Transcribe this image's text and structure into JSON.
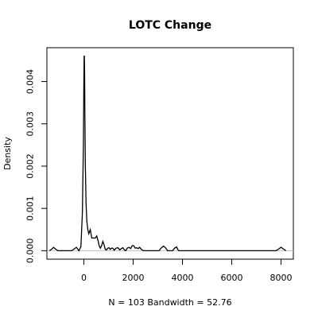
{
  "chart_data": {
    "type": "line",
    "title": "LOTC Change",
    "xlabel": "N = 103   Bandwidth = 52.76",
    "ylabel": "Density",
    "xlim": [
      -1500,
      8500
    ],
    "ylim": [
      -0.0002,
      0.0048
    ],
    "x_ticks": [
      0,
      2000,
      4000,
      6000,
      8000
    ],
    "x_tick_labels": [
      "0",
      "2000",
      "4000",
      "6000",
      "8000"
    ],
    "y_ticks": [
      0.0,
      0.001,
      0.002,
      0.003,
      0.004
    ],
    "y_tick_labels": [
      "0.000",
      "0.001",
      "0.002",
      "0.003",
      "0.004"
    ],
    "baseline": 0,
    "grid": false,
    "legend": "none",
    "line_color": "#000000",
    "baseline_color": "#bebebe",
    "series": [
      {
        "x": [
          -1400,
          -1300,
          -1230,
          -1150,
          -1050,
          -500,
          -400,
          -300,
          -200,
          -120,
          -60,
          -20,
          0,
          10,
          20,
          30,
          40,
          60,
          90,
          120,
          160,
          200,
          260,
          320,
          380,
          430,
          470,
          520,
          570,
          620,
          670,
          720,
          770,
          820,
          870,
          920,
          970,
          1020,
          1070,
          1120,
          1170,
          1230,
          1300,
          1380,
          1460,
          1520,
          1580,
          1640,
          1700,
          1760,
          1830,
          1900,
          1960,
          2020,
          2080,
          2140,
          2200,
          2260,
          2320,
          2380,
          2440,
          2500,
          3050,
          3150,
          3230,
          3310,
          3400,
          3600,
          3680,
          3760,
          3840,
          7800,
          7900,
          8000,
          8100,
          8200
        ],
        "y": [
          0.0,
          4e-05,
          8e-05,
          4e-05,
          0.0,
          0.0,
          4e-05,
          8e-05,
          0.0,
          0.0001,
          0.0009,
          0.0025,
          0.004,
          0.0046,
          0.0046,
          0.0042,
          0.0033,
          0.002,
          0.0011,
          0.0007,
          0.0005,
          0.0004,
          0.0005,
          0.0003,
          0.0003,
          0.0003,
          0.0003,
          0.00035,
          0.00025,
          0.00012,
          6e-05,
          0.00012,
          0.00022,
          0.00014,
          3e-05,
          2e-05,
          6e-05,
          7e-05,
          3e-05,
          6e-05,
          6e-05,
          1e-05,
          6e-05,
          7e-05,
          2e-05,
          5e-05,
          7e-05,
          2e-05,
          0.0,
          6e-05,
          8e-05,
          5e-05,
          0.00012,
          0.00012,
          6e-05,
          7e-05,
          5e-05,
          8e-05,
          4e-05,
          1e-05,
          0.0,
          0.0,
          0.0,
          7e-05,
          0.00011,
          7e-05,
          0.0,
          0.0,
          6e-05,
          9e-05,
          0.0,
          0.0,
          4e-05,
          8e-05,
          4e-05,
          0.0
        ]
      }
    ]
  }
}
